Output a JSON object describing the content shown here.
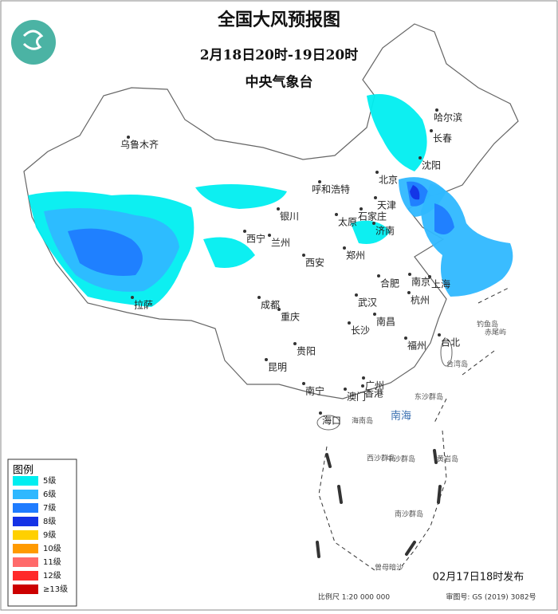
{
  "header": {
    "title": "全国大风预报图",
    "period": "2月18日20时-19日20时",
    "issuer": "中央气象台"
  },
  "legend": {
    "title": "图例",
    "levels": [
      {
        "label": "5级",
        "color": "#00eef0"
      },
      {
        "label": "6级",
        "color": "#2fb8ff"
      },
      {
        "label": "7级",
        "color": "#1f7cff"
      },
      {
        "label": "8级",
        "color": "#1432e6"
      },
      {
        "label": "9级",
        "color": "#ffd000"
      },
      {
        "label": "10级",
        "color": "#ff9a00"
      },
      {
        "label": "11级",
        "color": "#ff6a6a"
      },
      {
        "label": "12级",
        "color": "#ff2a2a"
      },
      {
        "label": "≥13级",
        "color": "#cc0000"
      }
    ]
  },
  "cities": [
    "乌鲁木齐",
    "哈尔滨",
    "长春",
    "沈阳",
    "北京",
    "呼和浩特",
    "天津",
    "银川",
    "太原",
    "石家庄",
    "济南",
    "西宁",
    "兰州",
    "郑州",
    "西安",
    "合肥",
    "南京",
    "上海",
    "成都",
    "武汉",
    "杭州",
    "拉萨",
    "重庆",
    "长沙",
    "南昌",
    "福州",
    "台北",
    "贵阳",
    "昆明",
    "南宁",
    "广州",
    "香港",
    "澳门",
    "海口"
  ],
  "sea_labels": {
    "south_sea": "南海",
    "islands": [
      "钓鱼岛",
      "赤尾屿",
      "台湾岛",
      "东沙群岛",
      "海南岛",
      "中沙群岛",
      "黄岩岛",
      "西沙群岛",
      "南沙群岛",
      "曾母暗沙"
    ]
  },
  "footer": {
    "issued": "02月17日18时发布",
    "scale": "比例尺 1:20 000 000",
    "approval": "审图号: GS (2019) 3082号"
  }
}
